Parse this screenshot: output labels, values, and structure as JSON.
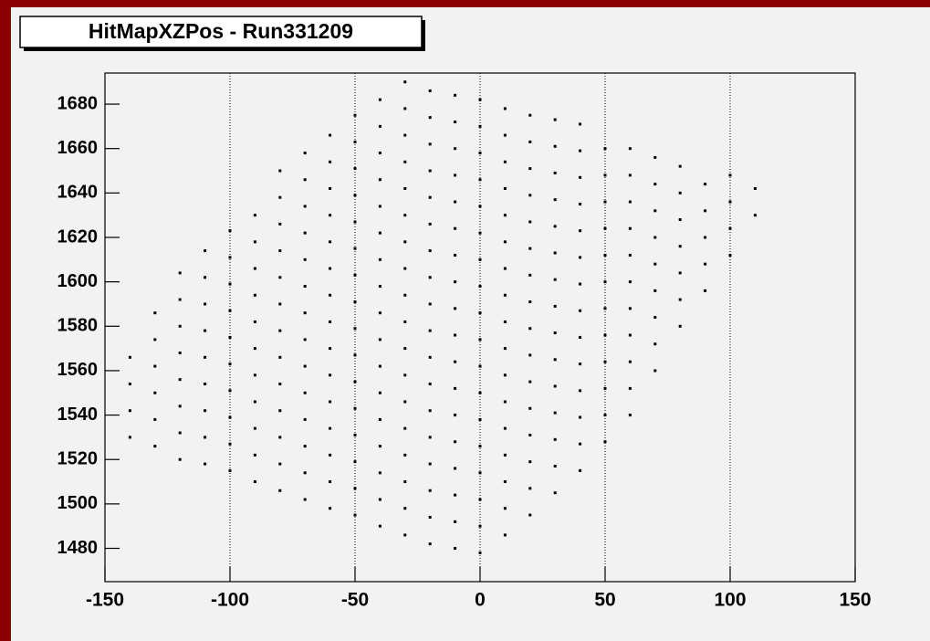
{
  "chart_data": {
    "type": "scatter",
    "title": "HitMapXZPos - Run331209",
    "xlim": [
      -150,
      150
    ],
    "ylim": [
      1465,
      1694
    ],
    "xticks": [
      -150,
      -100,
      -50,
      0,
      50,
      100,
      150
    ],
    "yticks": [
      1480,
      1500,
      1520,
      1540,
      1560,
      1580,
      1600,
      1620,
      1640,
      1660,
      1680
    ],
    "xgrid": true,
    "color": "#000000",
    "x": [
      -140,
      -140,
      -140,
      -140,
      -130,
      -130,
      -130,
      -130,
      -130,
      -130,
      -120,
      -120,
      -120,
      -120,
      -120,
      -120,
      -120,
      -120,
      -110,
      -110,
      -110,
      -110,
      -110,
      -110,
      -110,
      -110,
      -110,
      -100,
      -100,
      -100,
      -100,
      -100,
      -100,
      -100,
      -100,
      -100,
      -100,
      -90,
      -90,
      -90,
      -90,
      -90,
      -90,
      -90,
      -90,
      -90,
      -90,
      -90,
      -80,
      -80,
      -80,
      -80,
      -80,
      -80,
      -80,
      -80,
      -80,
      -80,
      -80,
      -80,
      -80,
      -70,
      -70,
      -70,
      -70,
      -70,
      -70,
      -70,
      -70,
      -70,
      -70,
      -70,
      -70,
      -70,
      -70,
      -60,
      -60,
      -60,
      -60,
      -60,
      -60,
      -60,
      -60,
      -60,
      -60,
      -60,
      -60,
      -60,
      -60,
      -60,
      -50,
      -50,
      -50,
      -50,
      -50,
      -50,
      -50,
      -50,
      -50,
      -50,
      -50,
      -50,
      -50,
      -50,
      -50,
      -50,
      -40,
      -40,
      -40,
      -40,
      -40,
      -40,
      -40,
      -40,
      -40,
      -40,
      -40,
      -40,
      -40,
      -40,
      -40,
      -40,
      -40,
      -30,
      -30,
      -30,
      -30,
      -30,
      -30,
      -30,
      -30,
      -30,
      -30,
      -30,
      -30,
      -30,
      -30,
      -30,
      -30,
      -30,
      -30,
      -20,
      -20,
      -20,
      -20,
      -20,
      -20,
      -20,
      -20,
      -20,
      -20,
      -20,
      -20,
      -20,
      -20,
      -20,
      -20,
      -20,
      -20,
      -10,
      -10,
      -10,
      -10,
      -10,
      -10,
      -10,
      -10,
      -10,
      -10,
      -10,
      -10,
      -10,
      -10,
      -10,
      -10,
      -10,
      -10,
      0,
      0,
      0,
      0,
      0,
      0,
      0,
      0,
      0,
      0,
      0,
      0,
      0,
      0,
      0,
      0,
      0,
      0,
      10,
      10,
      10,
      10,
      10,
      10,
      10,
      10,
      10,
      10,
      10,
      10,
      10,
      10,
      10,
      10,
      10,
      20,
      20,
      20,
      20,
      20,
      20,
      20,
      20,
      20,
      20,
      20,
      20,
      20,
      20,
      20,
      20,
      30,
      30,
      30,
      30,
      30,
      30,
      30,
      30,
      30,
      30,
      30,
      30,
      30,
      30,
      30,
      40,
      40,
      40,
      40,
      40,
      40,
      40,
      40,
      40,
      40,
      40,
      40,
      40,
      40,
      50,
      50,
      50,
      50,
      50,
      50,
      50,
      50,
      50,
      50,
      50,
      50,
      60,
      60,
      60,
      60,
      60,
      60,
      60,
      60,
      60,
      60,
      60,
      70,
      70,
      70,
      70,
      70,
      70,
      70,
      70,
      70,
      80,
      80,
      80,
      80,
      80,
      80,
      80,
      90,
      90,
      90,
      90,
      90,
      100,
      100,
      100,
      100,
      110,
      110
    ],
    "values": [
      1530,
      1542,
      1554,
      1566,
      1526,
      1538,
      1550,
      1562,
      1574,
      1586,
      1520,
      1532,
      1544,
      1556,
      1568,
      1580,
      1592,
      1604,
      1518,
      1530,
      1542,
      1554,
      1566,
      1578,
      1590,
      1602,
      1614,
      1515,
      1527,
      1539,
      1551,
      1563,
      1575,
      1587,
      1599,
      1611,
      1623,
      1510,
      1522,
      1534,
      1546,
      1558,
      1570,
      1582,
      1594,
      1606,
      1618,
      1630,
      1506,
      1518,
      1530,
      1542,
      1554,
      1566,
      1578,
      1590,
      1602,
      1614,
      1626,
      1638,
      1650,
      1502,
      1514,
      1526,
      1538,
      1550,
      1562,
      1574,
      1586,
      1598,
      1610,
      1622,
      1634,
      1646,
      1658,
      1498,
      1510,
      1522,
      1534,
      1546,
      1558,
      1570,
      1582,
      1594,
      1606,
      1618,
      1630,
      1642,
      1654,
      1666,
      1495,
      1507,
      1519,
      1531,
      1543,
      1555,
      1567,
      1579,
      1591,
      1603,
      1615,
      1627,
      1639,
      1651,
      1663,
      1675,
      1490,
      1502,
      1514,
      1526,
      1538,
      1550,
      1562,
      1574,
      1586,
      1598,
      1610,
      1622,
      1634,
      1646,
      1658,
      1670,
      1682,
      1486,
      1498,
      1510,
      1522,
      1534,
      1546,
      1558,
      1570,
      1582,
      1594,
      1606,
      1618,
      1630,
      1642,
      1654,
      1666,
      1678,
      1690,
      1482,
      1494,
      1506,
      1518,
      1530,
      1542,
      1554,
      1566,
      1578,
      1590,
      1602,
      1614,
      1626,
      1638,
      1650,
      1662,
      1674,
      1686,
      1480,
      1492,
      1504,
      1516,
      1528,
      1540,
      1552,
      1564,
      1576,
      1588,
      1600,
      1612,
      1624,
      1636,
      1648,
      1660,
      1672,
      1684,
      1478,
      1490,
      1502,
      1514,
      1526,
      1538,
      1550,
      1562,
      1574,
      1586,
      1598,
      1610,
      1622,
      1634,
      1646,
      1658,
      1670,
      1682,
      1486,
      1498,
      1510,
      1522,
      1534,
      1546,
      1558,
      1570,
      1582,
      1594,
      1606,
      1618,
      1630,
      1642,
      1654,
      1666,
      1678,
      1495,
      1507,
      1519,
      1531,
      1543,
      1555,
      1567,
      1579,
      1591,
      1603,
      1615,
      1627,
      1639,
      1651,
      1663,
      1675,
      1505,
      1517,
      1529,
      1541,
      1553,
      1565,
      1577,
      1589,
      1601,
      1613,
      1625,
      1637,
      1649,
      1661,
      1673,
      1515,
      1527,
      1539,
      1551,
      1563,
      1575,
      1587,
      1599,
      1611,
      1623,
      1635,
      1647,
      1659,
      1671,
      1528,
      1540,
      1552,
      1564,
      1576,
      1588,
      1600,
      1612,
      1624,
      1636,
      1648,
      1660,
      1540,
      1552,
      1564,
      1576,
      1588,
      1600,
      1612,
      1624,
      1636,
      1648,
      1660,
      1560,
      1572,
      1584,
      1596,
      1608,
      1620,
      1632,
      1644,
      1656,
      1580,
      1592,
      1604,
      1616,
      1628,
      1640,
      1652,
      1596,
      1608,
      1620,
      1632,
      1644,
      1612,
      1624,
      1636,
      1648,
      1630,
      1642
    ]
  }
}
